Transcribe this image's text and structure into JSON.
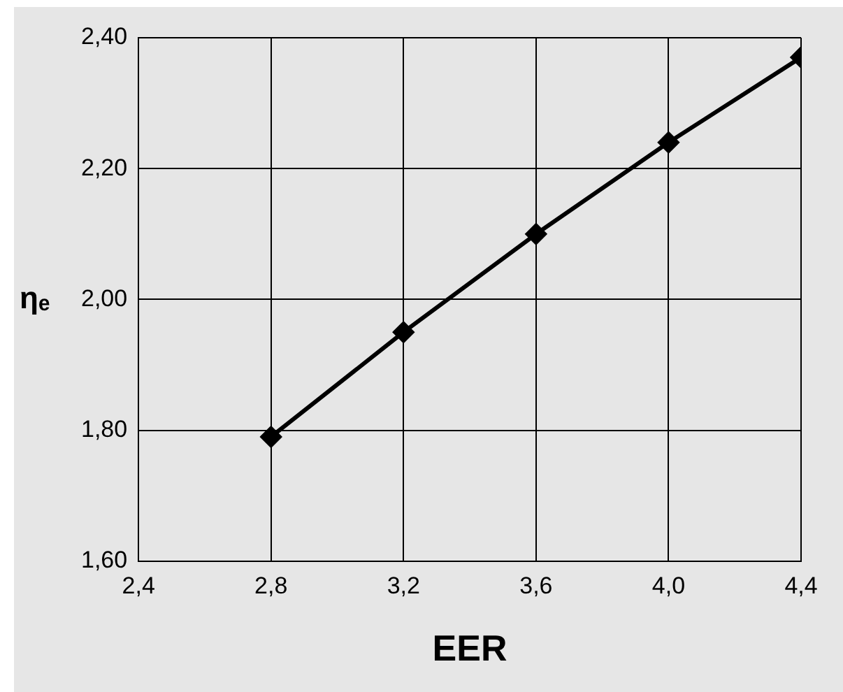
{
  "chart_data": {
    "type": "line",
    "xlabel": "EER",
    "ylabel": "ηₑ",
    "x": [
      2.8,
      3.2,
      3.6,
      4.0,
      4.4
    ],
    "series": [
      {
        "color": "#000000",
        "values": [
          1.79,
          1.95,
          2.1,
          2.24,
          2.37
        ]
      }
    ],
    "xlim": [
      2.4,
      4.4
    ],
    "xticks": [
      {
        "value": 2.4,
        "label": "2,4"
      },
      {
        "value": 2.8,
        "label": "2,8"
      },
      {
        "value": 3.2,
        "label": "3,2"
      },
      {
        "value": 3.6,
        "label": "3,6"
      },
      {
        "value": 4.0,
        "label": "4,0"
      },
      {
        "value": 4.4,
        "label": "4,4"
      }
    ],
    "ylim": [
      1.6,
      2.4
    ],
    "yticks": [
      {
        "value": 1.6,
        "label": "1,60"
      },
      {
        "value": 1.8,
        "label": "1,80"
      },
      {
        "value": 2.0,
        "label": "2,00"
      },
      {
        "value": 2.2,
        "label": "2,20"
      },
      {
        "value": 2.4,
        "label": "2,40"
      }
    ],
    "grid": true,
    "legend": false,
    "marker": "diamond",
    "line_style": "solid"
  }
}
